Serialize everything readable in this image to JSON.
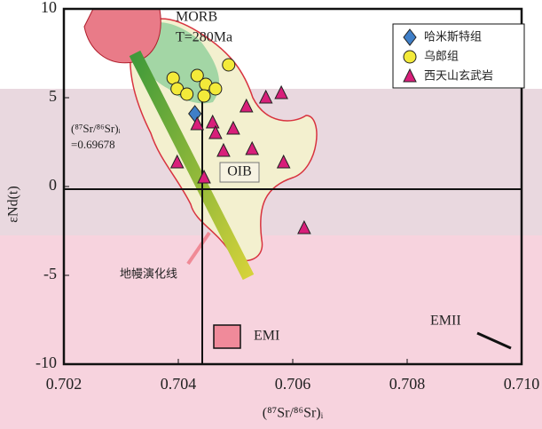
{
  "chart_data": {
    "type": "scatter",
    "x_label": "(⁸⁷Sr/⁸⁶Sr)ᵢ",
    "y_label": "εNd(t)",
    "xlim": [
      0.702,
      0.71
    ],
    "ylim": [
      -10,
      10
    ],
    "xticks": [
      0.702,
      0.704,
      0.706,
      0.708,
      {
        "value": 0.71,
        "label": "0.710"
      }
    ],
    "yticks": [
      10,
      5,
      0,
      -5,
      -10
    ],
    "annotations": [
      "MORB",
      "T=280Ma",
      "OIB",
      "地幔演化线",
      "EMI",
      "EMII",
      "(⁸⁷Sr/⁸⁶Sr)ᵢ",
      "=0.69678"
    ],
    "series": [
      {
        "name": "哈米斯特组",
        "color": "#3f7fc8",
        "marker": "diamond",
        "x": [
          0.70429
        ],
        "values": [
          4.1
        ]
      },
      {
        "name": "乌郎组",
        "color": "#f3ea3a",
        "marker": "circle",
        "x": [
          0.70391,
          0.70433,
          0.70488,
          0.70398,
          0.70448,
          0.70465,
          0.70415,
          0.70445
        ],
        "values": [
          6.1,
          6.25,
          6.85,
          5.5,
          5.75,
          5.5,
          5.2,
          5.1
        ]
      },
      {
        "name": "西天山玄武岩",
        "color": "#d81f7a",
        "marker": "triangle",
        "x": [
          0.70553,
          0.70519,
          0.7046,
          0.70465,
          0.70496,
          0.70433,
          0.70398,
          0.70479,
          0.70529,
          0.70445,
          0.70584,
          0.7062,
          0.7058
        ],
        "values": [
          5.0,
          4.5,
          3.6,
          3.0,
          3.25,
          3.5,
          1.35,
          2.0,
          2.1,
          0.5,
          1.35,
          -2.35,
          5.25
        ]
      }
    ]
  }
}
